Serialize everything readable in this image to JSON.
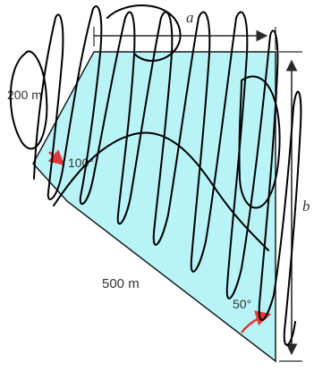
{
  "diagram": {
    "labels": {
      "a": "a",
      "b": "b",
      "left_side": "200 m",
      "bottom_side": "500 m",
      "angle_left": "100°",
      "angle_bottom": "50°"
    },
    "colors": {
      "fill": "#b8f4f7",
      "outline": "#1a1a1a",
      "arrow_accent": "#e0383d",
      "scribble": "#000000",
      "dimension": "#2a2a2a"
    }
  }
}
